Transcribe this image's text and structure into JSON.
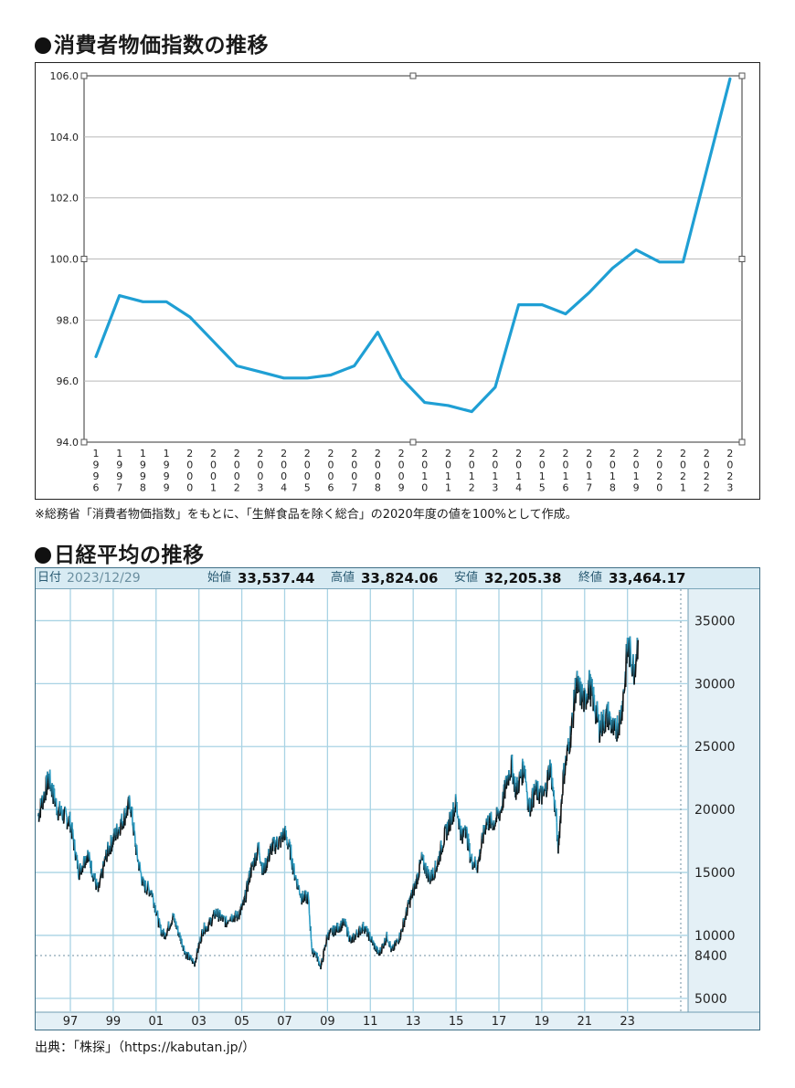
{
  "cpi": {
    "heading": "消費者物価指数の推移",
    "note": "※総務省「消費者物価指数」をもとに、「生鮮食品を除く総合」の2020年度の値を100%として作成。"
  },
  "nikkei": {
    "heading": "日経平均の推移",
    "date_label": "日付",
    "date": "2023/12/29",
    "open_label": "始値",
    "open": "33,537.44",
    "high_label": "高値",
    "high": "33,824.06",
    "low_label": "安値",
    "low": "32,205.38",
    "close_label": "終値",
    "close": "33,464.17",
    "source": "出典：「株探」（https://kabutan.jp/）"
  },
  "colors": {
    "cpi_line": "#1f9fd4",
    "nikkei_up": "#111111",
    "nikkei_down": "#2a9cc4",
    "nikkei_grid": "#a9d3e4",
    "nikkei_axis_bg": "#e4f0f6"
  },
  "chart_data": [
    {
      "type": "line",
      "title": "",
      "x": [
        "1996",
        "1997",
        "1998",
        "1999",
        "2000",
        "2001",
        "2002",
        "2003",
        "2004",
        "2005",
        "2006",
        "2007",
        "2008",
        "2009",
        "2010",
        "2011",
        "2012",
        "2013",
        "2014",
        "2015",
        "2016",
        "2017",
        "2018",
        "2019",
        "2020",
        "2021",
        "2022",
        "2023"
      ],
      "series": [
        {
          "values": [
            96.8,
            98.8,
            98.6,
            98.6,
            98.1,
            97.3,
            96.5,
            96.3,
            96.1,
            96.1,
            96.2,
            96.5,
            97.6,
            96.1,
            95.3,
            95.2,
            95.0,
            95.8,
            98.5,
            98.5,
            98.2,
            98.9,
            99.7,
            100.3,
            99.9,
            99.9,
            102.9,
            105.9
          ]
        }
      ],
      "yticks": [
        "106.0",
        "104.0",
        "102.0",
        "100.0",
        "98.0",
        "96.0",
        "94.0"
      ],
      "ylim": [
        94,
        106
      ],
      "grid": true,
      "legend": "none"
    },
    {
      "type": "line",
      "title": "",
      "x_ticks": [
        "97",
        "99",
        "01",
        "03",
        "05",
        "07",
        "09",
        "11",
        "13",
        "15",
        "17",
        "19",
        "21",
        "23"
      ],
      "y_ticks": [
        "35000",
        "30000",
        "25000",
        "20000",
        "15000",
        "10000",
        "8400",
        "5000"
      ],
      "ylim": [
        3900,
        37500
      ],
      "reference_line": 8400,
      "points": [
        [
          1996.0,
          19500
        ],
        [
          1996.5,
          22500
        ],
        [
          1996.9,
          20000
        ],
        [
          1997.5,
          19000
        ],
        [
          1997.9,
          15000
        ],
        [
          1998.3,
          16500
        ],
        [
          1998.8,
          13500
        ],
        [
          1999.2,
          16500
        ],
        [
          1999.6,
          18000
        ],
        [
          1999.9,
          19000
        ],
        [
          2000.3,
          20500
        ],
        [
          2000.6,
          16500
        ],
        [
          2000.9,
          14000
        ],
        [
          2001.3,
          13500
        ],
        [
          2001.7,
          10500
        ],
        [
          2001.9,
          10000
        ],
        [
          2002.3,
          11500
        ],
        [
          2002.7,
          9500
        ],
        [
          2002.9,
          8500
        ],
        [
          2003.3,
          7800
        ],
        [
          2003.7,
          10500
        ],
        [
          2003.9,
          10700
        ],
        [
          2004.3,
          11800
        ],
        [
          2004.8,
          11000
        ],
        [
          2004.9,
          11500
        ],
        [
          2005.3,
          11500
        ],
        [
          2005.6,
          12500
        ],
        [
          2005.9,
          15000
        ],
        [
          2006.3,
          17000
        ],
        [
          2006.5,
          15000
        ],
        [
          2006.9,
          17000
        ],
        [
          2007.3,
          17500
        ],
        [
          2007.5,
          18200
        ],
        [
          2007.8,
          16500
        ],
        [
          2007.9,
          15300
        ],
        [
          2008.3,
          13000
        ],
        [
          2008.6,
          13000
        ],
        [
          2008.8,
          8500
        ],
        [
          2008.9,
          8800
        ],
        [
          2009.2,
          7500
        ],
        [
          2009.5,
          10000
        ],
        [
          2009.9,
          10500
        ],
        [
          2010.3,
          11000
        ],
        [
          2010.6,
          9500
        ],
        [
          2010.9,
          10200
        ],
        [
          2011.2,
          10700
        ],
        [
          2011.5,
          9800
        ],
        [
          2011.9,
          8500
        ],
        [
          2012.3,
          10000
        ],
        [
          2012.5,
          8700
        ],
        [
          2012.9,
          10000
        ],
        [
          2013.3,
          12500
        ],
        [
          2013.6,
          14000
        ],
        [
          2013.9,
          16000
        ],
        [
          2014.3,
          14500
        ],
        [
          2014.6,
          15500
        ],
        [
          2014.9,
          17500
        ],
        [
          2015.3,
          19500
        ],
        [
          2015.5,
          20500
        ],
        [
          2015.8,
          17500
        ],
        [
          2015.9,
          19000
        ],
        [
          2016.2,
          16000
        ],
        [
          2016.5,
          15500
        ],
        [
          2016.9,
          19000
        ],
        [
          2017.3,
          19000
        ],
        [
          2017.6,
          20000
        ],
        [
          2017.9,
          22500
        ],
        [
          2018.1,
          23500
        ],
        [
          2018.3,
          21500
        ],
        [
          2018.7,
          23500
        ],
        [
          2018.9,
          20000
        ],
        [
          2019.2,
          21500
        ],
        [
          2019.6,
          21000
        ],
        [
          2019.9,
          23500
        ],
        [
          2020.2,
          19000
        ],
        [
          2020.25,
          16500
        ],
        [
          2020.5,
          22500
        ],
        [
          2020.9,
          26500
        ],
        [
          2021.1,
          30000
        ],
        [
          2021.5,
          28500
        ],
        [
          2021.7,
          30000
        ],
        [
          2021.9,
          28800
        ],
        [
          2022.2,
          26500
        ],
        [
          2022.6,
          27500
        ],
        [
          2022.9,
          26000
        ],
        [
          2023.2,
          27500
        ],
        [
          2023.4,
          30500
        ],
        [
          2023.5,
          33000
        ],
        [
          2023.7,
          32000
        ],
        [
          2023.8,
          31000
        ],
        [
          2023.99,
          33464
        ]
      ],
      "grid": true,
      "legend": "none"
    }
  ]
}
